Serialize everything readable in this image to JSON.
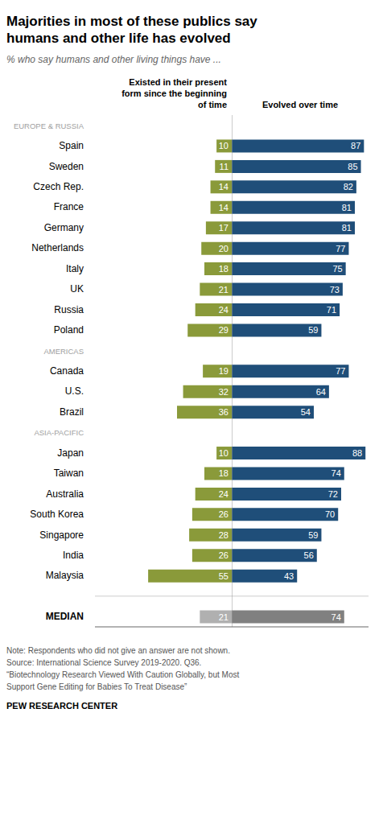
{
  "chart_data": {
    "type": "bar",
    "orientation": "horizontal",
    "title": "Majorities in most of these publics say\nhumans and other life has evolved",
    "subtitle": "% who say humans and other living things have ...",
    "categories": [
      "Spain",
      "Sweden",
      "Czech Rep.",
      "France",
      "Germany",
      "Netherlands",
      "Italy",
      "UK",
      "Russia",
      "Poland",
      "Canada",
      "U.S.",
      "Brazil",
      "Japan",
      "Taiwan",
      "Australia",
      "South Korea",
      "Singapore",
      "India",
      "Malaysia",
      "MEDIAN"
    ],
    "region_labels": [
      {
        "label": "EUROPE & RUSSIA",
        "before_index": 0
      },
      {
        "label": "AMERICAS",
        "before_index": 10
      },
      {
        "label": "ASIA-PACIFIC",
        "before_index": 13
      }
    ],
    "series": [
      {
        "name": "Existed in their present\nform since the beginning\nof time",
        "values": [
          10,
          11,
          14,
          14,
          17,
          20,
          18,
          21,
          24,
          29,
          19,
          32,
          36,
          10,
          18,
          24,
          26,
          28,
          26,
          55,
          21
        ],
        "colors": [
          "#8a9a3a",
          "#8a9a3a",
          "#8a9a3a",
          "#8a9a3a",
          "#8a9a3a",
          "#8a9a3a",
          "#8a9a3a",
          "#8a9a3a",
          "#8a9a3a",
          "#8a9a3a",
          "#8a9a3a",
          "#8a9a3a",
          "#8a9a3a",
          "#8a9a3a",
          "#8a9a3a",
          "#8a9a3a",
          "#8a9a3a",
          "#8a9a3a",
          "#8a9a3a",
          "#8a9a3a",
          "#b0b0b0"
        ]
      },
      {
        "name": "Evolved over time",
        "values": [
          87,
          85,
          82,
          81,
          81,
          77,
          75,
          73,
          71,
          59,
          77,
          64,
          54,
          88,
          74,
          72,
          70,
          59,
          56,
          43,
          74
        ],
        "colors": [
          "#1f4e79",
          "#1f4e79",
          "#1f4e79",
          "#1f4e79",
          "#1f4e79",
          "#1f4e79",
          "#1f4e79",
          "#1f4e79",
          "#1f4e79",
          "#1f4e79",
          "#1f4e79",
          "#1f4e79",
          "#1f4e79",
          "#1f4e79",
          "#1f4e79",
          "#1f4e79",
          "#1f4e79",
          "#1f4e79",
          "#1f4e79",
          "#1f4e79",
          "#808080"
        ]
      }
    ],
    "region_label_color": "#a0a0a0",
    "xlim": [
      0,
      90
    ],
    "tick_labels": false,
    "data_labels": true,
    "grid": false,
    "notes": [
      "Note: Respondents who did not give an answer are not shown.",
      "Source: International Science Survey 2019-2020. Q36.",
      "“Biotechnology Research Viewed With Caution Globally, but Most",
      "Support Gene Editing for Babies To Treat Disease”"
    ],
    "source": "PEW RESEARCH CENTER"
  }
}
